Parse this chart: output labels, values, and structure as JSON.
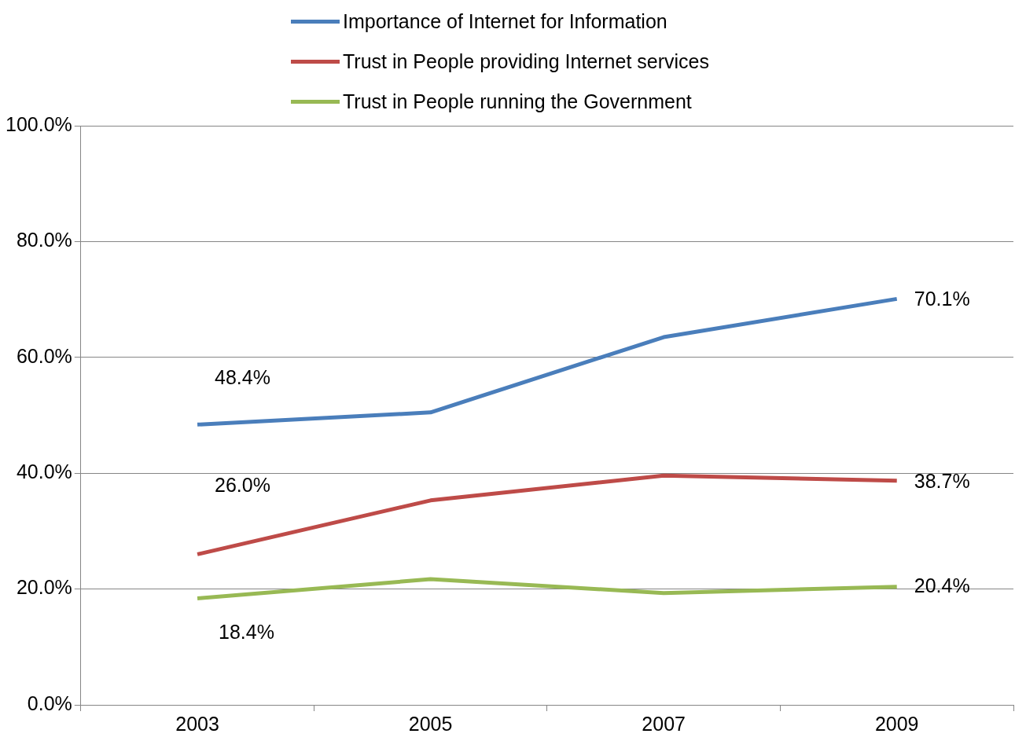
{
  "chart_data": {
    "type": "line",
    "categories": [
      "2003",
      "2005",
      "2007",
      "2009"
    ],
    "series": [
      {
        "name": "Importance of Internet for Information",
        "color": "#4a7ebb",
        "values": [
          48.4,
          50.5,
          63.5,
          70.1
        ],
        "value_labels": [
          "48.4%",
          null,
          null,
          "70.1%"
        ]
      },
      {
        "name": "Trust in People providing Internet services",
        "color": "#be4b48",
        "values": [
          26.0,
          35.3,
          39.6,
          38.7
        ],
        "value_labels": [
          "26.0%",
          null,
          null,
          "38.7%"
        ]
      },
      {
        "name": "Trust in People running the Government",
        "color": "#98b954",
        "values": [
          18.4,
          21.7,
          19.3,
          20.4
        ],
        "value_labels": [
          "18.4%",
          null,
          null,
          "20.4%"
        ]
      }
    ],
    "ylim": [
      0,
      100
    ],
    "yticks": [
      {
        "value": 0,
        "label": "0.0%"
      },
      {
        "value": 20,
        "label": "20.0%"
      },
      {
        "value": 40,
        "label": "40.0%"
      },
      {
        "value": 60,
        "label": "60.0%"
      },
      {
        "value": 80,
        "label": "80.0%"
      },
      {
        "value": 100,
        "label": "100.0%"
      }
    ],
    "grid": "y",
    "legend": "top",
    "marker": "none",
    "line_style": "solid"
  }
}
